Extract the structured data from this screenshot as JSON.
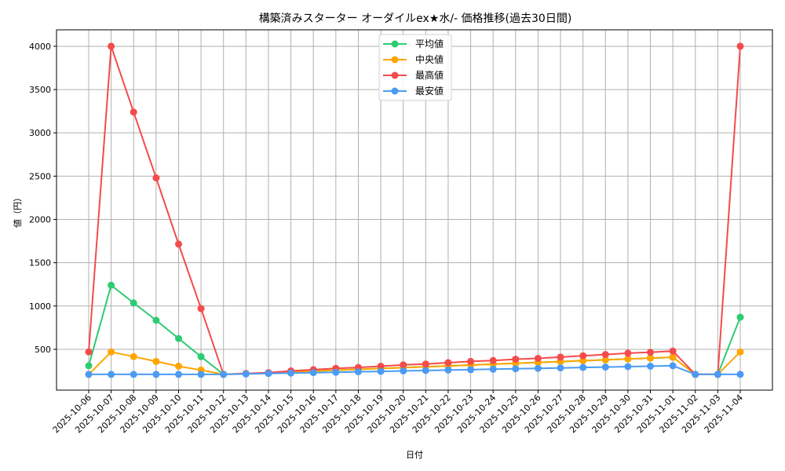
{
  "chart_data": {
    "type": "line",
    "title": "構築済みスターター オーダイルex★水/- 価格推移(過去30日間)",
    "xlabel": "日付",
    "ylabel": "値（円）",
    "ylim": [
      60,
      4180
    ],
    "yticks": [
      500,
      1000,
      1500,
      2000,
      2500,
      3000,
      3500,
      4000
    ],
    "grid": true,
    "legend_position": "upper center",
    "x": [
      "2025-10-06",
      "2025-10-07",
      "2025-10-08",
      "2025-10-09",
      "2025-10-10",
      "2025-10-11",
      "2025-10-12",
      "2025-10-13",
      "2025-10-14",
      "2025-10-15",
      "2025-10-16",
      "2025-10-17",
      "2025-10-18",
      "2025-10-19",
      "2025-10-20",
      "2025-10-21",
      "2025-10-22",
      "2025-10-23",
      "2025-10-24",
      "2025-10-25",
      "2025-10-26",
      "2025-10-27",
      "2025-10-28",
      "2025-10-29",
      "2025-10-30",
      "2025-10-31",
      "2025-11-01",
      "2025-11-02",
      "2025-11-03",
      "2025-11-04"
    ],
    "series": [
      {
        "name": "平均値",
        "color": "#2ecc71",
        "values": [
          310,
          1240,
          1035,
          835,
          625,
          415,
          210,
          218,
          228,
          238,
          248,
          258,
          268,
          278,
          288,
          298,
          308,
          318,
          328,
          338,
          348,
          358,
          368,
          378,
          388,
          398,
          408,
          210,
          210,
          870
        ]
      },
      {
        "name": "中央値",
        "color": "#ffa500",
        "values": [
          210,
          470,
          415,
          360,
          305,
          260,
          210,
          218,
          228,
          238,
          248,
          258,
          268,
          278,
          288,
          298,
          308,
          318,
          328,
          338,
          348,
          358,
          368,
          378,
          388,
          398,
          408,
          210,
          210,
          470
        ]
      },
      {
        "name": "最高値",
        "color": "#f44b4b",
        "values": [
          470,
          4000,
          3240,
          2480,
          1715,
          970,
          210,
          220,
          230,
          250,
          265,
          280,
          290,
          305,
          320,
          330,
          345,
          360,
          370,
          385,
          395,
          410,
          425,
          440,
          455,
          465,
          480,
          210,
          210,
          4000
        ]
      },
      {
        "name": "最安値",
        "color": "#4b9bf4",
        "values": [
          210,
          210,
          210,
          210,
          210,
          210,
          210,
          215,
          220,
          225,
          230,
          235,
          240,
          245,
          250,
          255,
          260,
          265,
          270,
          275,
          280,
          285,
          290,
          295,
          300,
          305,
          310,
          210,
          210,
          210
        ]
      }
    ]
  }
}
